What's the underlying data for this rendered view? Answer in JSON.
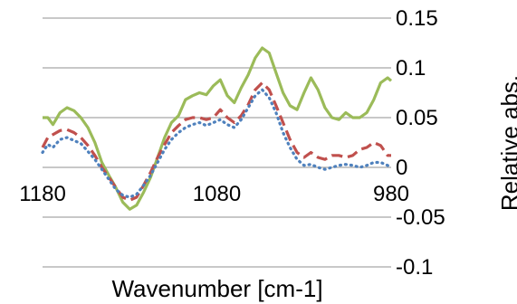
{
  "chart_data": {
    "type": "line",
    "title": "",
    "xlabel": "Wavenumber [cm-1]",
    "ylabel": "Relative abs.",
    "x_reversed": true,
    "xlim": [
      1180,
      980
    ],
    "ylim": [
      -0.1,
      0.15
    ],
    "y_axis_position": "right",
    "x_ticks": [
      {
        "value": 1180,
        "label": "1180"
      },
      {
        "value": 1080,
        "label": "1080"
      },
      {
        "value": 980,
        "label": "980"
      }
    ],
    "y_ticks": [
      {
        "value": 0.15,
        "label": "0.15"
      },
      {
        "value": 0.1,
        "label": "0.1"
      },
      {
        "value": 0.05,
        "label": "0.05"
      },
      {
        "value": 0,
        "label": "0"
      },
      {
        "value": -0.05,
        "label": "-0.05"
      },
      {
        "value": -0.1,
        "label": "-0.1"
      }
    ],
    "grid": "horizontal",
    "series": [
      {
        "color": "#9bbb59",
        "style": "solid",
        "points": [
          [
            1180,
            0.05
          ],
          [
            1177,
            0.05
          ],
          [
            1174,
            0.043
          ],
          [
            1170,
            0.055
          ],
          [
            1166,
            0.06
          ],
          [
            1162,
            0.057
          ],
          [
            1158,
            0.05
          ],
          [
            1154,
            0.04
          ],
          [
            1150,
            0.025
          ],
          [
            1146,
            0.005
          ],
          [
            1142,
            -0.008
          ],
          [
            1138,
            -0.02
          ],
          [
            1134,
            -0.035
          ],
          [
            1130,
            -0.042
          ],
          [
            1126,
            -0.038
          ],
          [
            1122,
            -0.025
          ],
          [
            1118,
            -0.01
          ],
          [
            1114,
            0.01
          ],
          [
            1110,
            0.03
          ],
          [
            1106,
            0.045
          ],
          [
            1102,
            0.052
          ],
          [
            1098,
            0.068
          ],
          [
            1094,
            0.072
          ],
          [
            1090,
            0.075
          ],
          [
            1086,
            0.073
          ],
          [
            1082,
            0.082
          ],
          [
            1078,
            0.088
          ],
          [
            1074,
            0.072
          ],
          [
            1070,
            0.065
          ],
          [
            1066,
            0.08
          ],
          [
            1062,
            0.093
          ],
          [
            1058,
            0.11
          ],
          [
            1054,
            0.12
          ],
          [
            1050,
            0.115
          ],
          [
            1046,
            0.095
          ],
          [
            1042,
            0.075
          ],
          [
            1038,
            0.062
          ],
          [
            1034,
            0.058
          ],
          [
            1030,
            0.075
          ],
          [
            1026,
            0.09
          ],
          [
            1022,
            0.078
          ],
          [
            1018,
            0.06
          ],
          [
            1014,
            0.05
          ],
          [
            1010,
            0.048
          ],
          [
            1006,
            0.055
          ],
          [
            1002,
            0.05
          ],
          [
            998,
            0.05
          ],
          [
            994,
            0.055
          ],
          [
            990,
            0.068
          ],
          [
            986,
            0.085
          ],
          [
            982,
            0.09
          ],
          [
            980,
            0.087
          ]
        ]
      },
      {
        "color": "#c0504d",
        "style": "dash",
        "points": [
          [
            1180,
            0.02
          ],
          [
            1177,
            0.03
          ],
          [
            1174,
            0.033
          ],
          [
            1170,
            0.037
          ],
          [
            1166,
            0.038
          ],
          [
            1162,
            0.035
          ],
          [
            1158,
            0.03
          ],
          [
            1154,
            0.022
          ],
          [
            1150,
            0.012
          ],
          [
            1146,
            0.0
          ],
          [
            1142,
            -0.01
          ],
          [
            1138,
            -0.02
          ],
          [
            1134,
            -0.03
          ],
          [
            1130,
            -0.033
          ],
          [
            1126,
            -0.03
          ],
          [
            1122,
            -0.018
          ],
          [
            1118,
            -0.005
          ],
          [
            1114,
            0.01
          ],
          [
            1110,
            0.023
          ],
          [
            1106,
            0.035
          ],
          [
            1102,
            0.042
          ],
          [
            1098,
            0.048
          ],
          [
            1094,
            0.05
          ],
          [
            1090,
            0.05
          ],
          [
            1086,
            0.048
          ],
          [
            1082,
            0.05
          ],
          [
            1078,
            0.058
          ],
          [
            1074,
            0.05
          ],
          [
            1070,
            0.045
          ],
          [
            1066,
            0.052
          ],
          [
            1062,
            0.063
          ],
          [
            1058,
            0.078
          ],
          [
            1054,
            0.085
          ],
          [
            1050,
            0.078
          ],
          [
            1046,
            0.062
          ],
          [
            1042,
            0.045
          ],
          [
            1038,
            0.028
          ],
          [
            1034,
            0.015
          ],
          [
            1030,
            0.01
          ],
          [
            1026,
            0.015
          ],
          [
            1022,
            0.01
          ],
          [
            1018,
            0.008
          ],
          [
            1014,
            0.012
          ],
          [
            1010,
            0.012
          ],
          [
            1006,
            0.01
          ],
          [
            1002,
            0.012
          ],
          [
            998,
            0.018
          ],
          [
            994,
            0.02
          ],
          [
            990,
            0.025
          ],
          [
            986,
            0.022
          ],
          [
            982,
            0.012
          ],
          [
            980,
            0.012
          ]
        ]
      },
      {
        "color": "#4f81bd",
        "style": "dot",
        "points": [
          [
            1180,
            0.015
          ],
          [
            1177,
            0.023
          ],
          [
            1174,
            0.02
          ],
          [
            1170,
            0.028
          ],
          [
            1166,
            0.03
          ],
          [
            1162,
            0.027
          ],
          [
            1158,
            0.024
          ],
          [
            1154,
            0.016
          ],
          [
            1150,
            0.008
          ],
          [
            1146,
            -0.002
          ],
          [
            1142,
            -0.012
          ],
          [
            1138,
            -0.022
          ],
          [
            1134,
            -0.028
          ],
          [
            1130,
            -0.03
          ],
          [
            1126,
            -0.027
          ],
          [
            1122,
            -0.018
          ],
          [
            1118,
            -0.008
          ],
          [
            1114,
            0.005
          ],
          [
            1110,
            0.018
          ],
          [
            1106,
            0.028
          ],
          [
            1102,
            0.035
          ],
          [
            1098,
            0.04
          ],
          [
            1094,
            0.043
          ],
          [
            1090,
            0.045
          ],
          [
            1086,
            0.042
          ],
          [
            1082,
            0.045
          ],
          [
            1078,
            0.048
          ],
          [
            1074,
            0.043
          ],
          [
            1070,
            0.04
          ],
          [
            1066,
            0.048
          ],
          [
            1062,
            0.06
          ],
          [
            1058,
            0.072
          ],
          [
            1054,
            0.078
          ],
          [
            1050,
            0.07
          ],
          [
            1046,
            0.055
          ],
          [
            1042,
            0.035
          ],
          [
            1038,
            0.02
          ],
          [
            1034,
            0.008
          ],
          [
            1030,
            0.002
          ],
          [
            1026,
            0.003
          ],
          [
            1022,
            0.0
          ],
          [
            1018,
            -0.002
          ],
          [
            1014,
            0.0
          ],
          [
            1010,
            0.002
          ],
          [
            1006,
            0.003
          ],
          [
            1002,
            0.002
          ],
          [
            998,
            0.0
          ],
          [
            994,
            0.002
          ],
          [
            990,
            0.005
          ],
          [
            986,
            0.005
          ],
          [
            982,
            0.002
          ],
          [
            980,
            0.0
          ]
        ]
      }
    ]
  }
}
